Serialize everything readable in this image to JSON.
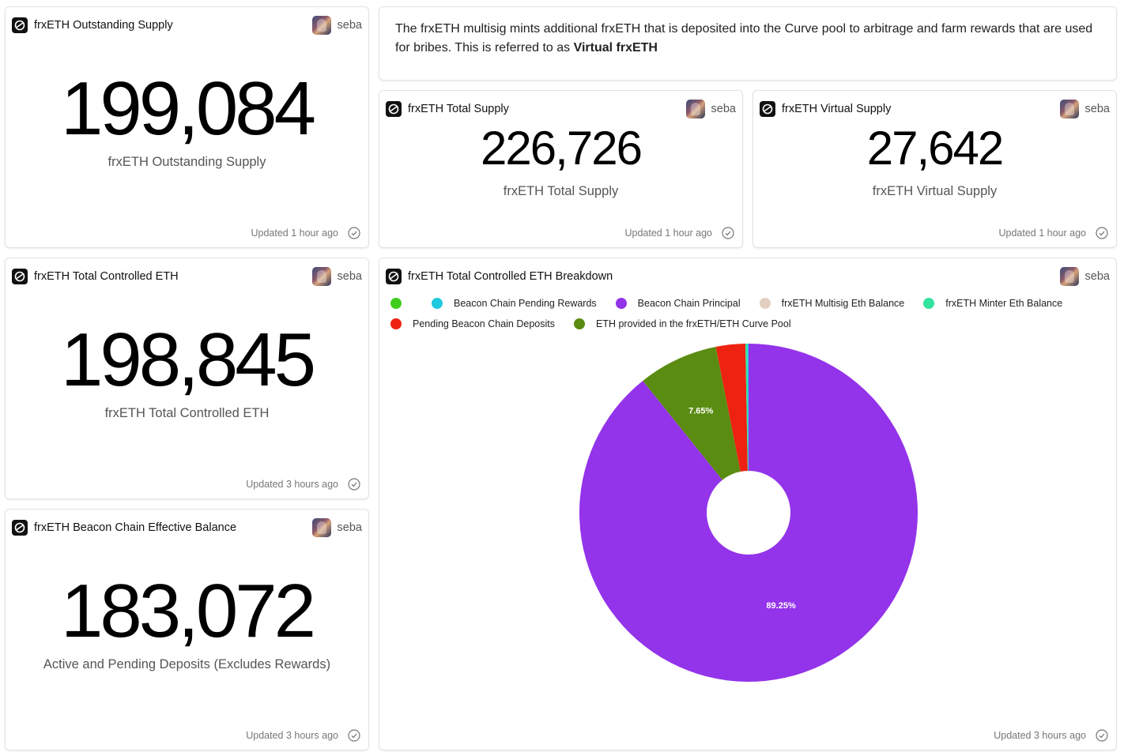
{
  "cards": {
    "outstanding": {
      "title": "frxETH Outstanding Supply",
      "owner": "seba",
      "value": "199,084",
      "label": "frxETH Outstanding Supply",
      "updated": "Updated 1 hour ago"
    },
    "note": {
      "text": "The frxETH multisig mints additional frxETH that is deposited into the Curve pool to arbitrage and farm rewards that are used for bribes. This is referred to as ",
      "bold": "Virtual frxETH"
    },
    "total_supply": {
      "title": "frxETH Total Supply",
      "owner": "seba",
      "value": "226,726",
      "label": "frxETH Total Supply",
      "updated": "Updated 1 hour ago"
    },
    "virtual_supply": {
      "title": "frxETH Virtual Supply",
      "owner": "seba",
      "value": "27,642",
      "label": "frxETH Virtual Supply",
      "updated": "Updated 1 hour ago"
    },
    "controlled": {
      "title": "frxETH Total Controlled ETH",
      "owner": "seba",
      "value": "198,845",
      "label": "frxETH Total Controlled ETH",
      "updated": "Updated 3 hours ago"
    },
    "beacon": {
      "title": "frxETH Beacon Chain Effective Balance",
      "owner": "seba",
      "value": "183,072",
      "label": "Active and Pending Deposits (Excludes Rewards)",
      "updated": "Updated 3 hours ago"
    },
    "breakdown": {
      "title": "frxETH Total Controlled ETH Breakdown",
      "owner": "seba",
      "updated": "Updated 3 hours ago"
    }
  },
  "colors": {
    "green": "#3fce1f",
    "cyan": "#1fc9e0",
    "purple": "#9333ea",
    "beige": "#e2cfc1",
    "mint": "#34e3a0",
    "red": "#ee2211",
    "olive": "#5b8c12"
  },
  "chart_data": {
    "type": "pie",
    "title": "frxETH Total Controlled ETH Breakdown",
    "legend": [
      {
        "name": "",
        "color": "#3fce1f"
      },
      {
        "name": "Beacon Chain Pending Rewards",
        "color": "#1fc9e0"
      },
      {
        "name": "Beacon Chain Principal",
        "color": "#9333ea"
      },
      {
        "name": "frxETH Multisig Eth Balance",
        "color": "#e2cfc1"
      },
      {
        "name": "frxETH Minter Eth Balance",
        "color": "#34e3a0"
      },
      {
        "name": "Pending Beacon Chain Deposits",
        "color": "#ee2211"
      },
      {
        "name": "ETH provided in the frxETH/ETH Curve Pool",
        "color": "#5b8c12"
      }
    ],
    "slices": [
      {
        "name": "Beacon Chain Principal",
        "percent": 89.25,
        "color": "#9333ea",
        "label": "89.25%"
      },
      {
        "name": "ETH provided in the frxETH/ETH Curve Pool",
        "percent": 7.65,
        "color": "#5b8c12",
        "label": "7.65%"
      },
      {
        "name": "Pending Beacon Chain Deposits",
        "percent": 2.8,
        "color": "#ee2211",
        "label": ""
      },
      {
        "name": "frxETH Minter Eth Balance",
        "percent": 0.2,
        "color": "#34e3a0",
        "label": ""
      },
      {
        "name": "Beacon Chain Pending Rewards",
        "percent": 0.1,
        "color": "#1fc9e0",
        "label": ""
      }
    ]
  }
}
